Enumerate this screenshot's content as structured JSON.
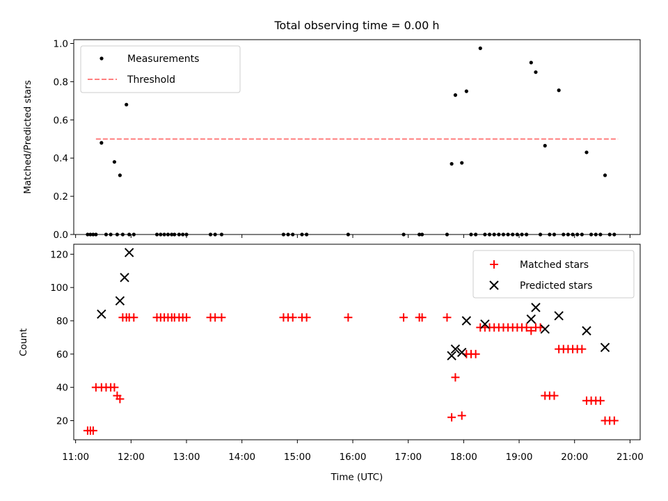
{
  "chart_data": [
    {
      "type": "scatter",
      "panel": "top",
      "title": "Total observing time = 0.00 h",
      "ylabel": "Matched/Predicted stars",
      "xlabel": "",
      "xlim": [
        "10:58",
        "21:11"
      ],
      "ylim": [
        0,
        1.02
      ],
      "yticks": [
        0.0,
        0.2,
        0.4,
        0.6,
        0.8,
        1.0
      ],
      "ytick_labels": [
        "0.0",
        "0.2",
        "0.4",
        "0.6",
        "0.8",
        "1.0"
      ],
      "xticks": [
        "11:00",
        "12:00",
        "13:00",
        "14:00",
        "15:00",
        "16:00",
        "17:00",
        "18:00",
        "19:00",
        "20:00",
        "21:00"
      ],
      "grid": false,
      "legend": {
        "position": "upper left",
        "entries": [
          "Measurements",
          "Threshold"
        ]
      },
      "series": [
        {
          "name": "Measurements",
          "color": "#000000",
          "marker": "dot",
          "x": [
            "11:13",
            "11:16",
            "11:19",
            "11:22",
            "11:28",
            "11:33",
            "11:38",
            "11:42",
            "11:45",
            "11:48",
            "11:51",
            "11:55",
            "11:58",
            "12:03",
            "12:28",
            "12:32",
            "12:36",
            "12:40",
            "12:44",
            "12:47",
            "12:52",
            "12:56",
            "13:00",
            "13:26",
            "13:31",
            "13:38",
            "14:45",
            "14:50",
            "14:55",
            "15:05",
            "15:10",
            "15:55",
            "16:55",
            "17:12",
            "17:15",
            "17:42",
            "17:47",
            "17:51",
            "17:58",
            "18:03",
            "18:08",
            "18:13",
            "18:18",
            "18:23",
            "18:28",
            "18:33",
            "18:38",
            "18:43",
            "18:48",
            "18:53",
            "18:58",
            "19:03",
            "19:08",
            "19:13",
            "19:18",
            "19:23",
            "19:28",
            "19:33",
            "19:38",
            "19:43",
            "19:48",
            "19:53",
            "19:58",
            "20:03",
            "20:08",
            "20:13",
            "20:18",
            "20:23",
            "20:28",
            "20:33",
            "20:38",
            "20:43"
          ],
          "y": [
            0.0,
            0.0,
            0.0,
            0.0,
            0.48,
            0.0,
            0.0,
            0.38,
            0.0,
            0.31,
            0.0,
            0.68,
            0.0,
            0.0,
            0.0,
            0.0,
            0.0,
            0.0,
            0.0,
            0.0,
            0.0,
            0.0,
            0.0,
            0.0,
            0.0,
            0.0,
            0.0,
            0.0,
            0.0,
            0.0,
            0.0,
            0.0,
            0.0,
            0.0,
            0.0,
            0.0,
            0.37,
            0.73,
            0.375,
            0.75,
            0.0,
            0.0,
            0.975,
            0.0,
            0.0,
            0.0,
            0.0,
            0.0,
            0.0,
            0.0,
            0.0,
            0.0,
            0.0,
            0.9,
            0.85,
            0.0,
            0.465,
            0.0,
            0.0,
            0.755,
            0.0,
            0.0,
            0.0,
            0.0,
            0.0,
            0.43,
            0.0,
            0.0,
            0.0,
            0.31,
            0.0,
            0.0
          ]
        },
        {
          "name": "Threshold",
          "color": "#ff7f7f",
          "style": "dashed",
          "x": [
            "11:22",
            "20:47"
          ],
          "y": [
            0.5,
            0.5
          ]
        }
      ]
    },
    {
      "type": "scatter",
      "panel": "bottom",
      "title": "",
      "xlabel": "Time (UTC)",
      "ylabel": "Count",
      "xlim": [
        "10:58",
        "21:11"
      ],
      "ylim": [
        8.5,
        126
      ],
      "yticks": [
        20,
        40,
        60,
        80,
        100,
        120
      ],
      "ytick_labels": [
        "20",
        "40",
        "60",
        "80",
        "100",
        "120"
      ],
      "xticks": [
        "11:00",
        "12:00",
        "13:00",
        "14:00",
        "15:00",
        "16:00",
        "17:00",
        "18:00",
        "19:00",
        "20:00",
        "21:00"
      ],
      "xtick_labels": [
        "11:00",
        "12:00",
        "13:00",
        "14:00",
        "15:00",
        "16:00",
        "17:00",
        "18:00",
        "19:00",
        "20:00",
        "21:00"
      ],
      "grid": false,
      "legend": {
        "position": "upper right",
        "entries": [
          "Matched stars",
          "Predicted stars"
        ]
      },
      "series": [
        {
          "name": "Matched stars",
          "color": "#ff0000",
          "marker": "plus",
          "x": [
            "11:13",
            "11:16",
            "11:19",
            "11:22",
            "11:28",
            "11:33",
            "11:38",
            "11:42",
            "11:45",
            "11:48",
            "11:51",
            "11:55",
            "11:58",
            "12:03",
            "12:28",
            "12:32",
            "12:36",
            "12:40",
            "12:44",
            "12:47",
            "12:52",
            "12:56",
            "13:00",
            "13:26",
            "13:31",
            "13:38",
            "14:45",
            "14:50",
            "14:55",
            "15:05",
            "15:10",
            "15:55",
            "16:55",
            "17:12",
            "17:15",
            "17:42",
            "17:47",
            "17:51",
            "17:58",
            "18:03",
            "18:08",
            "18:13",
            "18:18",
            "18:23",
            "18:28",
            "18:33",
            "18:38",
            "18:43",
            "18:48",
            "18:53",
            "18:58",
            "19:03",
            "19:08",
            "19:13",
            "19:18",
            "19:23",
            "19:28",
            "19:33",
            "19:38",
            "19:43",
            "19:48",
            "19:53",
            "19:58",
            "20:03",
            "20:08",
            "20:13",
            "20:18",
            "20:23",
            "20:28",
            "20:33",
            "20:38",
            "20:43"
          ],
          "y": [
            14,
            14,
            14,
            40,
            40,
            40,
            40,
            40,
            35,
            33,
            82,
            82,
            82,
            82,
            82,
            82,
            82,
            82,
            82,
            82,
            82,
            82,
            82,
            82,
            82,
            82,
            82,
            82,
            82,
            82,
            82,
            82,
            82,
            82,
            82,
            82,
            22,
            46,
            23,
            60,
            60,
            60,
            76,
            76,
            76,
            76,
            76,
            76,
            76,
            76,
            76,
            76,
            76,
            74,
            76,
            76,
            35,
            35,
            35,
            63,
            63,
            63,
            63,
            63,
            63,
            32,
            32,
            32,
            32,
            20,
            20,
            20
          ]
        },
        {
          "name": "Predicted stars",
          "color": "#000000",
          "marker": "x",
          "x": [
            "11:28",
            "11:48",
            "11:53",
            "11:58",
            "17:47",
            "17:51",
            "17:58",
            "18:03",
            "18:23",
            "19:13",
            "19:18",
            "19:28",
            "19:43",
            "20:13",
            "20:33"
          ],
          "y": [
            84,
            92,
            106,
            121,
            59,
            63,
            61,
            80,
            78,
            81,
            88,
            75,
            83,
            74,
            64
          ]
        }
      ]
    }
  ]
}
